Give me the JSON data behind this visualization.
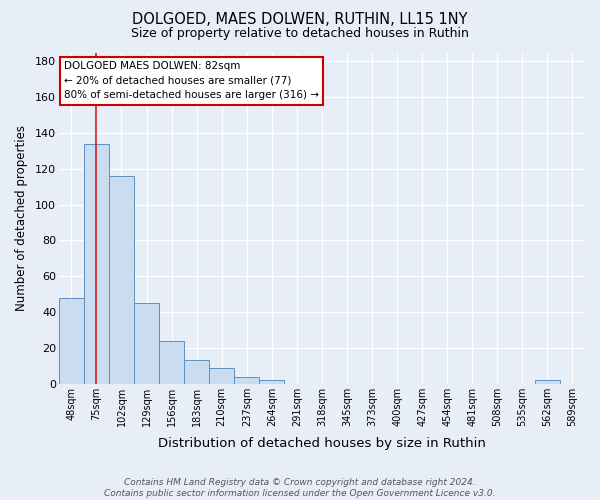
{
  "title1": "DOLGOED, MAES DOLWEN, RUTHIN, LL15 1NY",
  "title2": "Size of property relative to detached houses in Ruthin",
  "xlabel": "Distribution of detached houses by size in Ruthin",
  "ylabel": "Number of detached properties",
  "categories": [
    "48sqm",
    "75sqm",
    "102sqm",
    "129sqm",
    "156sqm",
    "183sqm",
    "210sqm",
    "237sqm",
    "264sqm",
    "291sqm",
    "318sqm",
    "345sqm",
    "373sqm",
    "400sqm",
    "427sqm",
    "454sqm",
    "481sqm",
    "508sqm",
    "535sqm",
    "562sqm",
    "589sqm"
  ],
  "values": [
    48,
    134,
    116,
    45,
    24,
    13,
    9,
    4,
    2,
    0,
    0,
    0,
    0,
    0,
    0,
    0,
    0,
    0,
    0,
    2,
    0
  ],
  "bar_color": "#c9dcf0",
  "bar_edge_color": "#6090c0",
  "bg_color": "#e8eef8",
  "plot_bg_color": "#e8eef8",
  "grid_color": "#ffffff",
  "vline_x": 1,
  "vline_color": "#cc2222",
  "annotation_title": "DOLGOED MAES DOLWEN: 82sqm",
  "annotation_line1": "← 20% of detached houses are smaller (77)",
  "annotation_line2": "80% of semi-detached houses are larger (316) →",
  "annotation_box_color": "#ffffff",
  "annotation_box_edge": "#cc0000",
  "ylim": [
    0,
    185
  ],
  "yticks": [
    0,
    20,
    40,
    60,
    80,
    100,
    120,
    140,
    160,
    180
  ],
  "footer": "Contains HM Land Registry data © Crown copyright and database right 2024.\nContains public sector information licensed under the Open Government Licence v3.0.",
  "figsize": [
    6.0,
    5.0
  ],
  "dpi": 100
}
